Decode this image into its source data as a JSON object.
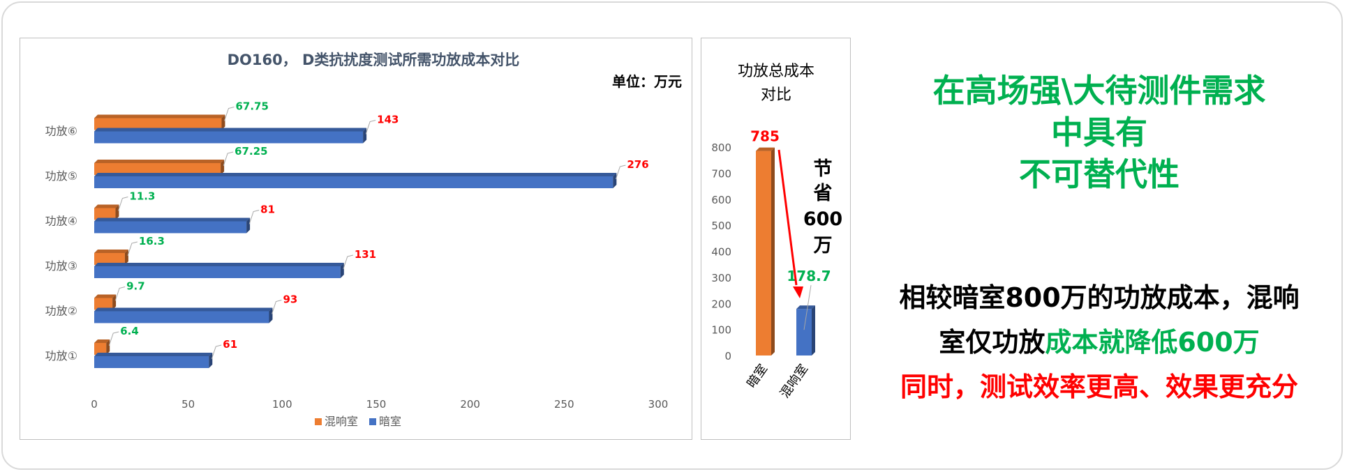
{
  "colors": {
    "orange": "#ed7d31",
    "blue": "#4472c4",
    "green_text": "#00b050",
    "red_text": "#ff0000"
  },
  "chart_data": [
    {
      "type": "bar",
      "orientation": "horizontal",
      "title": "DO160， D类抗扰度测试所需功放成本对比",
      "unit_label": "单位：万元",
      "categories": [
        "功放①",
        "功放②",
        "功放③",
        "功放④",
        "功放⑤",
        "功放⑥"
      ],
      "series": [
        {
          "name": "混响室",
          "values": [
            6.4,
            9.7,
            16.3,
            11.3,
            67.25,
            67.75
          ],
          "labels": [
            "6.4",
            "9.7",
            "16.3",
            "11.3",
            "67.25",
            "67.75"
          ]
        },
        {
          "name": "暗室",
          "values": [
            61,
            93,
            131,
            81,
            276,
            143
          ],
          "labels": [
            "61",
            "93",
            "131",
            "81",
            "276",
            "143"
          ]
        }
      ],
      "xlim": [
        0,
        300
      ],
      "xticks": [
        "0",
        "50",
        "100",
        "150",
        "200",
        "250",
        "300"
      ],
      "grid": true,
      "legend": "bottom"
    },
    {
      "type": "bar",
      "title_lines": [
        "功放总成本",
        "对比"
      ],
      "categories": [
        "暗室",
        "混响室"
      ],
      "values": [
        785,
        178.7
      ],
      "labels": [
        "785",
        "178.7"
      ],
      "ylim": [
        0,
        800
      ],
      "yticks": [
        "0",
        "100",
        "200",
        "300",
        "400",
        "500",
        "600",
        "700",
        "800"
      ],
      "annotation_lines": [
        "节",
        "省",
        "600",
        "万"
      ],
      "legend": "none"
    }
  ],
  "headline": {
    "lines": [
      "在高场强\\大待测件需求",
      "中具有",
      "不可替代性"
    ]
  },
  "body": {
    "line1": "相较暗室800万的功放成本，混响",
    "line2_black": "室仅功放",
    "line2_green": "成本就降低600万",
    "line3": "同时，测试效率更高、效果更充分"
  }
}
